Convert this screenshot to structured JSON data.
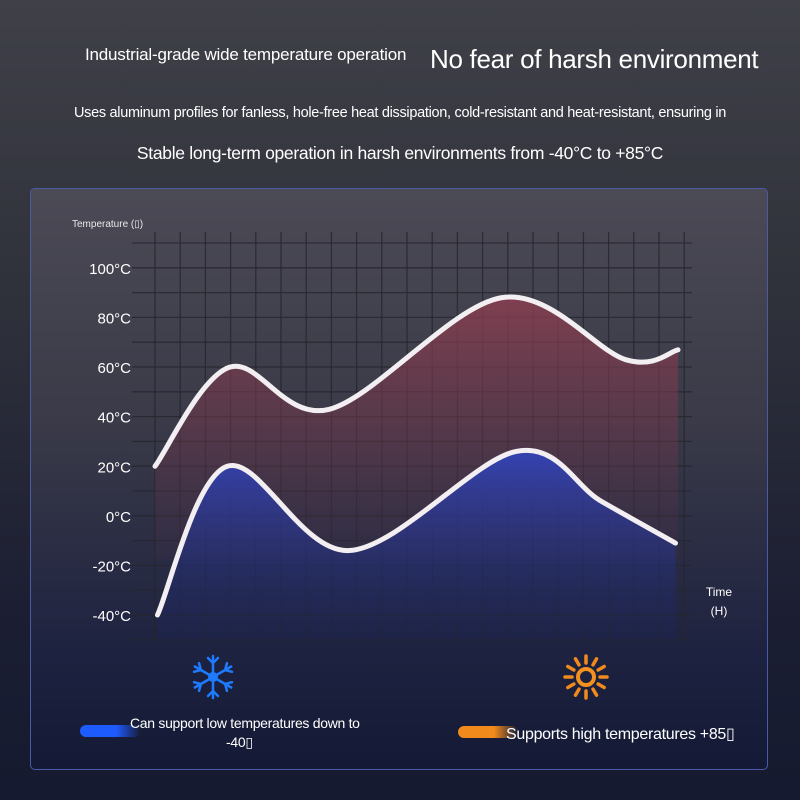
{
  "header": {
    "title_left": "Industrial-grade wide temperature operation",
    "title_right": "No fear of harsh environment",
    "line1": "Uses aluminum profiles for fanless, hole-free heat dissipation, cold-resistant and heat-resistant, ensuring in",
    "line2": "Stable long-term operation in harsh environments from -40°C to +85°C"
  },
  "chart_data": {
    "type": "area",
    "ylabel": "Temperature (▯)",
    "xlabel_line1": "Time",
    "xlabel_line2": "(H)",
    "ylim": [
      -40,
      100
    ],
    "yticks": [
      "100°C",
      "80°C",
      "60°C",
      "40°C",
      "20°C",
      "0°C",
      "-20°C",
      "-40°C"
    ],
    "ytick_values": [
      100,
      80,
      60,
      40,
      20,
      0,
      -20,
      -40
    ],
    "grid": true,
    "series": [
      {
        "color": "#7a3d4c",
        "points": [
          [
            0,
            20
          ],
          [
            3,
            60
          ],
          [
            7,
            43
          ],
          [
            13.9,
            88
          ],
          [
            18.9,
            63
          ],
          [
            21,
            67
          ]
        ]
      },
      {
        "color": "#2e3fa8",
        "points": [
          [
            0.1,
            -40
          ],
          [
            2.9,
            20
          ],
          [
            7.8,
            -14
          ],
          [
            14.5,
            26
          ],
          [
            17.9,
            6
          ],
          [
            20.9,
            -11
          ]
        ]
      }
    ]
  },
  "legend": {
    "low_icon": "snowflake-icon",
    "low_color": "#1e5bff",
    "low_text_1": "Can support low temperatures down to",
    "low_text_2": "-40▯",
    "high_icon": "sun-icon",
    "high_color": "#f08a1c",
    "high_text": "Supports high temperatures +85▯"
  }
}
